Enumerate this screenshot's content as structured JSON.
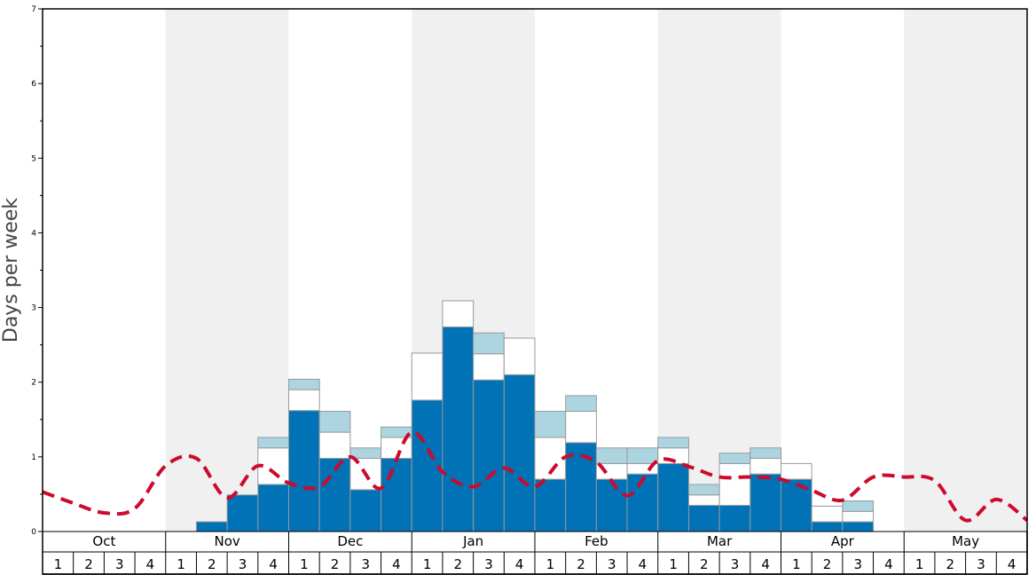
{
  "chart_data": {
    "type": "bar",
    "ylabel": "Days per week",
    "ylim": [
      0,
      7
    ],
    "yticks": [
      0,
      1,
      2,
      3,
      4,
      5,
      6,
      7
    ],
    "months": [
      "Oct",
      "Nov",
      "Dec",
      "Jan",
      "Feb",
      "Mar",
      "Apr",
      "May"
    ],
    "weeks_per_month": [
      "1",
      "2",
      "3",
      "4"
    ],
    "shaded_months": [
      "Nov",
      "Jan",
      "Mar",
      "May"
    ],
    "colors": {
      "dark_blue": "#0072b5",
      "light_blue": "#acd5e1",
      "white_segment": "#ffffff",
      "bar_edge": "#999999",
      "dashed_line": "#cc0a2c",
      "shade": "#f0f0f0"
    },
    "series": [
      {
        "segment": "dark_blue",
        "values": [
          0,
          0,
          0,
          0,
          0,
          0.13,
          0.49,
          0.63,
          1.62,
          0.98,
          0.56,
          0.98,
          1.76,
          2.74,
          2.03,
          2.1,
          0.7,
          1.19,
          0.7,
          0.77,
          0.91,
          0.35,
          0.35,
          0.77,
          0.7,
          0.13,
          0.13,
          0,
          0,
          0,
          0,
          0
        ]
      },
      {
        "segment": "white_segment",
        "values": [
          0,
          0,
          0,
          0,
          0,
          0,
          0,
          0.49,
          0.28,
          0.35,
          0.42,
          0.28,
          0.63,
          0.35,
          0.35,
          0.49,
          0.56,
          0.42,
          0.21,
          0.14,
          0.21,
          0.14,
          0.56,
          0.21,
          0.21,
          0.21,
          0.14,
          0,
          0,
          0,
          0,
          0
        ]
      },
      {
        "segment": "light_blue",
        "values": [
          0,
          0,
          0,
          0,
          0,
          0,
          0,
          0.14,
          0.14,
          0.28,
          0.14,
          0.14,
          0,
          0,
          0.28,
          0,
          0.35,
          0.21,
          0.21,
          0.21,
          0.14,
          0.14,
          0.14,
          0.14,
          0,
          0,
          0.14,
          0,
          0,
          0,
          0,
          0
        ]
      }
    ],
    "line": {
      "style": "dashed",
      "values": [
        0.53,
        0.38,
        0.25,
        0.31,
        0.88,
        0.98,
        0.45,
        0.88,
        0.65,
        0.6,
        1.0,
        0.58,
        1.33,
        0.8,
        0.6,
        0.85,
        0.6,
        1.0,
        0.93,
        0.48,
        0.95,
        0.87,
        0.73,
        0.73,
        0.7,
        0.55,
        0.42,
        0.73,
        0.73,
        0.68,
        0.15,
        0.43,
        0.15
      ]
    },
    "grid": false,
    "legend": "none"
  }
}
